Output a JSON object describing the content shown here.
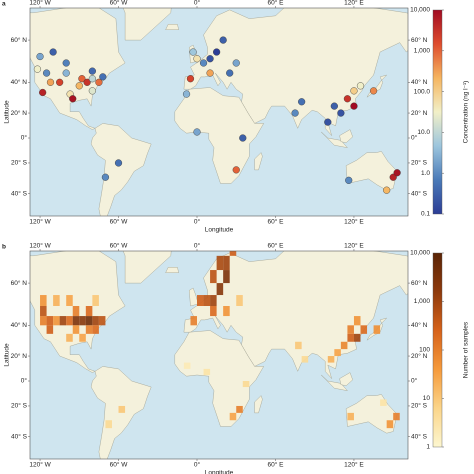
{
  "panels": [
    {
      "label": "a",
      "x_axis_label": "Longitude",
      "y_axis_label": "Latitude",
      "lon_ticks": [
        {
          "value": -120,
          "label": "120° W"
        },
        {
          "value": -60,
          "label": "60° W"
        },
        {
          "value": 0,
          "label": "0°"
        },
        {
          "value": 60,
          "label": "60° E"
        },
        {
          "value": 120,
          "label": "120° E"
        }
      ],
      "lat_ticks": [
        {
          "value": 60,
          "label": "60° N"
        },
        {
          "value": 40,
          "label": "40° N"
        },
        {
          "value": 20,
          "label": "20° N"
        },
        {
          "value": 0,
          "label": "0°"
        },
        {
          "value": -20,
          "label": "20° S"
        },
        {
          "value": -40,
          "label": "40° S"
        }
      ],
      "colorbar": {
        "title": "Concentration (ng l⁻¹)",
        "scale": "log",
        "lim": [
          0.1,
          10000
        ],
        "ticks": [
          0.1,
          {
            "value": 1,
            "label": "1.0"
          },
          {
            "value": 10,
            "label": "10.0"
          },
          {
            "value": 100,
            "label": "100.0"
          },
          {
            "value": 1000,
            "label": "1,000"
          },
          {
            "value": 10000,
            "label": "10,000"
          }
        ],
        "colors": [
          "#2c3d96",
          "#4a7ab8",
          "#9cc5dd",
          "#f2f0c8",
          "#f5b560",
          "#de4d2e",
          "#a10b22"
        ]
      },
      "points": [
        {
          "lon": -122,
          "lat": 47,
          "value": 30
        },
        {
          "lon": -118,
          "lat": 34,
          "value": 5000
        },
        {
          "lon": -112,
          "lat": 40,
          "value": 300
        },
        {
          "lon": -105,
          "lat": 40,
          "value": 2000
        },
        {
          "lon": -97,
          "lat": 33,
          "value": 50
        },
        {
          "lon": -95,
          "lat": 30,
          "value": 8000
        },
        {
          "lon": -90,
          "lat": 38,
          "value": 200
        },
        {
          "lon": -88,
          "lat": 42,
          "value": 1000
        },
        {
          "lon": -84,
          "lat": 40,
          "value": 3000
        },
        {
          "lon": -80,
          "lat": 42,
          "value": 10
        },
        {
          "lon": -75,
          "lat": 40,
          "value": 800
        },
        {
          "lon": -72,
          "lat": 43,
          "value": 0.5
        },
        {
          "lon": -80,
          "lat": 35,
          "value": 20
        },
        {
          "lon": -100,
          "lat": 45,
          "value": 3
        },
        {
          "lon": -115,
          "lat": 45,
          "value": 1
        },
        {
          "lon": -120,
          "lat": 53,
          "value": 2
        },
        {
          "lon": -110,
          "lat": 55,
          "value": 0.3
        },
        {
          "lon": -100,
          "lat": 50,
          "value": 0.8
        },
        {
          "lon": -80,
          "lat": 46,
          "value": 0.4
        },
        {
          "lon": 0,
          "lat": 52,
          "value": 50
        },
        {
          "lon": 5,
          "lat": 50,
          "value": 1
        },
        {
          "lon": 10,
          "lat": 52,
          "value": 0.2
        },
        {
          "lon": 15,
          "lat": 55,
          "value": 0.1
        },
        {
          "lon": 20,
          "lat": 60,
          "value": 0.3
        },
        {
          "lon": -5,
          "lat": 42,
          "value": 2000
        },
        {
          "lon": 10,
          "lat": 45,
          "value": 300
        },
        {
          "lon": 25,
          "lat": 45,
          "value": 0.5
        },
        {
          "lon": 30,
          "lat": 50,
          "value": 2
        },
        {
          "lon": -3,
          "lat": 55,
          "value": 5
        },
        {
          "lon": 115,
          "lat": 30,
          "value": 3000
        },
        {
          "lon": 120,
          "lat": 35,
          "value": 100
        },
        {
          "lon": 105,
          "lat": 25,
          "value": 0.3
        },
        {
          "lon": 110,
          "lat": 20,
          "value": 0.2
        },
        {
          "lon": 120,
          "lat": 25,
          "value": 10000
        },
        {
          "lon": 125,
          "lat": 38,
          "value": 30
        },
        {
          "lon": 135,
          "lat": 35,
          "value": 500
        },
        {
          "lon": 80,
          "lat": 28,
          "value": 0.5
        },
        {
          "lon": 75,
          "lat": 20,
          "value": 1
        },
        {
          "lon": 100,
          "lat": 13,
          "value": 0.2
        },
        {
          "lon": 30,
          "lat": -25,
          "value": 1000
        },
        {
          "lon": 0,
          "lat": 5,
          "value": 2
        },
        {
          "lon": 35,
          "lat": 0,
          "value": 0.3
        },
        {
          "lon": -8,
          "lat": 33,
          "value": 3
        },
        {
          "lon": 150,
          "lat": -30,
          "value": 5000
        },
        {
          "lon": 145,
          "lat": -38,
          "value": 200
        },
        {
          "lon": 116,
          "lat": -32,
          "value": 1
        },
        {
          "lon": 153,
          "lat": -27,
          "value": 8000
        },
        {
          "lon": -60,
          "lat": -20,
          "value": 0.5
        },
        {
          "lon": -70,
          "lat": -30,
          "value": 1
        }
      ]
    },
    {
      "label": "b",
      "x_axis_label": "Longitude",
      "y_axis_label": "Latitude",
      "lon_ticks": [
        {
          "value": -120,
          "label": "120° W"
        },
        {
          "value": -60,
          "label": "60° W"
        },
        {
          "value": 0,
          "label": "0°"
        },
        {
          "value": 60,
          "label": "60° E"
        },
        {
          "value": 120,
          "label": "120° E"
        }
      ],
      "lat_ticks": [
        {
          "value": 60,
          "label": "60° N"
        },
        {
          "value": 40,
          "label": "40° N"
        },
        {
          "value": 20,
          "label": "20° N"
        },
        {
          "value": 0,
          "label": "0°"
        },
        {
          "value": -20,
          "label": "20° S"
        },
        {
          "value": -40,
          "label": "40° S"
        }
      ],
      "colorbar": {
        "title": "Number of samples",
        "scale": "log",
        "lim": [
          1,
          10000
        ],
        "ticks": [
          1,
          10,
          100,
          {
            "value": 1000,
            "label": "1,000"
          },
          {
            "value": 10000,
            "label": "10,000"
          }
        ],
        "colors": [
          "#fdf7d0",
          "#fbd58a",
          "#f59a3c",
          "#d6621a",
          "#8e3a0c",
          "#5a2406"
        ]
      },
      "cells": [
        {
          "lon": -120,
          "lat": 40,
          "count": 100
        },
        {
          "lon": -115,
          "lat": 40,
          "count": 300
        },
        {
          "lon": -110,
          "lat": 40,
          "count": 50
        },
        {
          "lon": -105,
          "lat": 40,
          "count": 1000
        },
        {
          "lon": -100,
          "lat": 40,
          "count": 200
        },
        {
          "lon": -95,
          "lat": 40,
          "count": 3000
        },
        {
          "lon": -90,
          "lat": 40,
          "count": 2000
        },
        {
          "lon": -85,
          "lat": 40,
          "count": 5000
        },
        {
          "lon": -80,
          "lat": 40,
          "count": 1000
        },
        {
          "lon": -75,
          "lat": 40,
          "count": 500
        },
        {
          "lon": -120,
          "lat": 45,
          "count": 500
        },
        {
          "lon": -95,
          "lat": 45,
          "count": 100
        },
        {
          "lon": -85,
          "lat": 45,
          "count": 200
        },
        {
          "lon": -115,
          "lat": 35,
          "count": 300
        },
        {
          "lon": -95,
          "lat": 35,
          "count": 50
        },
        {
          "lon": -85,
          "lat": 35,
          "count": 100
        },
        {
          "lon": -80,
          "lat": 35,
          "count": 200
        },
        {
          "lon": -100,
          "lat": 30,
          "count": 20
        },
        {
          "lon": -90,
          "lat": 30,
          "count": 30
        },
        {
          "lon": -120,
          "lat": 50,
          "count": 50
        },
        {
          "lon": -110,
          "lat": 50,
          "count": 20
        },
        {
          "lon": -100,
          "lat": 50,
          "count": 30
        },
        {
          "lon": -80,
          "lat": 50,
          "count": 10
        },
        {
          "lon": 0,
          "lat": 50,
          "count": 300
        },
        {
          "lon": 5,
          "lat": 50,
          "count": 500
        },
        {
          "lon": 10,
          "lat": 50,
          "count": 1000
        },
        {
          "lon": 15,
          "lat": 55,
          "count": 2000
        },
        {
          "lon": 20,
          "lat": 60,
          "count": 3000
        },
        {
          "lon": 10,
          "lat": 60,
          "count": 500
        },
        {
          "lon": 15,
          "lat": 65,
          "count": 800
        },
        {
          "lon": 20,
          "lat": 65,
          "count": 1000
        },
        {
          "lon": 25,
          "lat": 70,
          "count": 300
        },
        {
          "lon": -5,
          "lat": 40,
          "count": 100
        },
        {
          "lon": 10,
          "lat": 45,
          "count": 200
        },
        {
          "lon": 20,
          "lat": 45,
          "count": 50
        },
        {
          "lon": 30,
          "lat": 50,
          "count": 10
        },
        {
          "lon": 115,
          "lat": 30,
          "count": 300
        },
        {
          "lon": 120,
          "lat": 30,
          "count": 1000
        },
        {
          "lon": 115,
          "lat": 35,
          "count": 100
        },
        {
          "lon": 120,
          "lat": 40,
          "count": 50
        },
        {
          "lon": 125,
          "lat": 35,
          "count": 200
        },
        {
          "lon": 110,
          "lat": 25,
          "count": 80
        },
        {
          "lon": 105,
          "lat": 20,
          "count": 30
        },
        {
          "lon": 100,
          "lat": 15,
          "count": 20
        },
        {
          "lon": 75,
          "lat": 25,
          "count": 10
        },
        {
          "lon": 80,
          "lat": 15,
          "count": 5
        },
        {
          "lon": 135,
          "lat": 35,
          "count": 60
        },
        {
          "lon": 30,
          "lat": -25,
          "count": 100
        },
        {
          "lon": 25,
          "lat": -30,
          "count": 30
        },
        {
          "lon": 35,
          "lat": -5,
          "count": 5
        },
        {
          "lon": 5,
          "lat": 5,
          "count": 3
        },
        {
          "lon": -10,
          "lat": 10,
          "count": 2
        },
        {
          "lon": 145,
          "lat": -35,
          "count": 50
        },
        {
          "lon": 150,
          "lat": -30,
          "count": 100
        },
        {
          "lon": 115,
          "lat": -30,
          "count": 20
        },
        {
          "lon": 140,
          "lat": -20,
          "count": 3
        },
        {
          "lon": -60,
          "lat": -25,
          "count": 10
        },
        {
          "lon": -70,
          "lat": -35,
          "count": 5
        }
      ]
    }
  ]
}
